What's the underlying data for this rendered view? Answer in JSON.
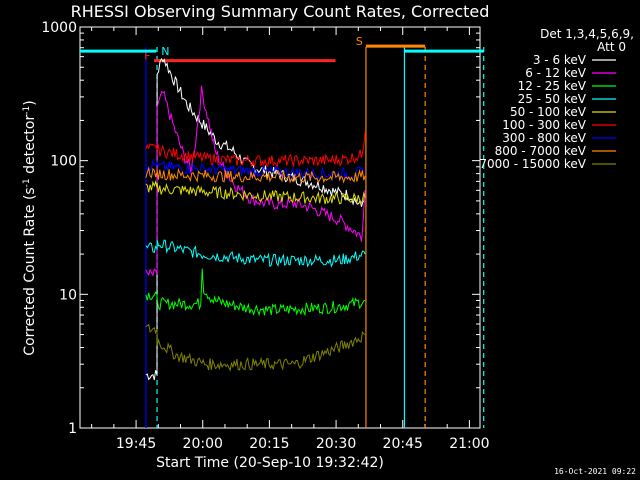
{
  "chart_data": {
    "type": "line",
    "title": "RHESSI Observing Summary Count Rates, Corrected",
    "xlabel": "Start Time (20-Sep-10 19:32:42)",
    "ylabel_main": "Corrected Count Rate (s",
    "ylabel_sup1": "-1",
    "ylabel_mid": " detector",
    "ylabel_sup2": "-1",
    "ylabel_end": ")",
    "ylim": [
      1,
      1000
    ],
    "yscale": "log",
    "y_ticks": [
      {
        "value": 1,
        "label": "1"
      },
      {
        "value": 10,
        "label": "10"
      },
      {
        "value": 100,
        "label": "100"
      },
      {
        "value": 1000,
        "label": "1000"
      }
    ],
    "xlim": [
      0,
      5400
    ],
    "x_ticks": [
      {
        "t": 757,
        "label": "19:45"
      },
      {
        "t": 1657,
        "label": "20:00"
      },
      {
        "t": 2557,
        "label": "20:15"
      },
      {
        "t": 3457,
        "label": "20:30"
      },
      {
        "t": 4357,
        "label": "20:45"
      },
      {
        "t": 5257,
        "label": "21:00"
      }
    ],
    "legend_header": [
      "Det 1,3,4,5,6,9,",
      "Att 0"
    ],
    "series": [
      {
        "name": "3 - 6 keV",
        "color": "#ffffff",
        "points": [
          [
            890,
            2.5
          ],
          [
            1040,
            2.5
          ],
          [
            1041,
            450
          ],
          [
            1120,
            600
          ],
          [
            1250,
            420
          ],
          [
            1450,
            260
          ],
          [
            1650,
            190
          ],
          [
            1850,
            140
          ],
          [
            2050,
            120
          ],
          [
            2250,
            95
          ],
          [
            2450,
            85
          ],
          [
            2650,
            80
          ],
          [
            2850,
            75
          ],
          [
            3050,
            70
          ],
          [
            3250,
            65
          ],
          [
            3450,
            58
          ],
          [
            3650,
            55
          ],
          [
            3800,
            45
          ],
          [
            3850,
            60
          ]
        ]
      },
      {
        "name": "6 - 12 keV",
        "color": "#ff00ff",
        "points": [
          [
            890,
            14
          ],
          [
            1040,
            14
          ],
          [
            1041,
            250
          ],
          [
            1120,
            320
          ],
          [
            1250,
            190
          ],
          [
            1400,
            110
          ],
          [
            1500,
            85
          ],
          [
            1560,
            140
          ],
          [
            1640,
            330
          ],
          [
            1720,
            220
          ],
          [
            1820,
            120
          ],
          [
            1950,
            85
          ],
          [
            2100,
            65
          ],
          [
            2300,
            52
          ],
          [
            2500,
            48
          ],
          [
            2700,
            47
          ],
          [
            2900,
            48
          ],
          [
            3100,
            45
          ],
          [
            3300,
            40
          ],
          [
            3500,
            36
          ],
          [
            3700,
            30
          ],
          [
            3800,
            27
          ],
          [
            3850,
            60
          ]
        ]
      },
      {
        "name": "12 - 25 keV",
        "color": "#00ff00",
        "points": [
          [
            890,
            10
          ],
          [
            1040,
            10
          ],
          [
            1041,
            8.5
          ],
          [
            1300,
            8.5
          ],
          [
            1500,
            8.5
          ],
          [
            1630,
            8.5
          ],
          [
            1650,
            17
          ],
          [
            1670,
            11
          ],
          [
            1800,
            9
          ],
          [
            2200,
            8
          ],
          [
            2600,
            7.6
          ],
          [
            3000,
            7.8
          ],
          [
            3400,
            8
          ],
          [
            3700,
            8.5
          ],
          [
            3850,
            9
          ]
        ]
      },
      {
        "name": "25 - 50 keV",
        "color": "#00ffff",
        "points": [
          [
            890,
            22
          ],
          [
            1040,
            22
          ],
          [
            1041,
            24
          ],
          [
            1300,
            22
          ],
          [
            1650,
            20
          ],
          [
            2000,
            19
          ],
          [
            2400,
            18
          ],
          [
            2800,
            18
          ],
          [
            3200,
            18
          ],
          [
            3500,
            18
          ],
          [
            3700,
            19
          ],
          [
            3850,
            20
          ]
        ]
      },
      {
        "name": "50 - 100 keV",
        "color": "#dddd00",
        "points": [
          [
            890,
            63
          ],
          [
            1040,
            63
          ],
          [
            1041,
            62
          ],
          [
            1400,
            60
          ],
          [
            1800,
            58
          ],
          [
            2200,
            56
          ],
          [
            2600,
            54
          ],
          [
            3000,
            53
          ],
          [
            3400,
            52
          ],
          [
            3700,
            52
          ],
          [
            3850,
            53
          ]
        ]
      },
      {
        "name": "100 - 300 keV",
        "color": "#ff0000",
        "points": [
          [
            890,
            122
          ],
          [
            1040,
            122
          ],
          [
            1041,
            120
          ],
          [
            1300,
            112
          ],
          [
            1700,
            104
          ],
          [
            2100,
            100
          ],
          [
            2500,
            100
          ],
          [
            2900,
            100
          ],
          [
            3300,
            100
          ],
          [
            3600,
            103
          ],
          [
            3800,
            110
          ],
          [
            3850,
            165
          ]
        ]
      },
      {
        "name": "300 - 800 keV",
        "color": "#0000ff",
        "points": [
          [
            890,
            93
          ],
          [
            1040,
            93
          ],
          [
            1041,
            90
          ],
          [
            1400,
            88
          ],
          [
            1800,
            86
          ],
          [
            2200,
            84
          ],
          [
            2600,
            82
          ],
          [
            3000,
            81
          ],
          [
            3400,
            80
          ],
          [
            3700,
            80
          ],
          [
            3850,
            82
          ]
        ]
      },
      {
        "name": "800 - 7000 keV",
        "color": "#ff8800",
        "points": [
          [
            890,
            82
          ],
          [
            1040,
            82
          ],
          [
            1041,
            80
          ],
          [
            1400,
            78
          ],
          [
            1800,
            77
          ],
          [
            2200,
            76
          ],
          [
            2600,
            76
          ],
          [
            3000,
            75
          ],
          [
            3400,
            75
          ],
          [
            3700,
            75
          ],
          [
            3850,
            77
          ]
        ]
      },
      {
        "name": "7000 - 15000 keV",
        "color": "#808000",
        "points": [
          [
            890,
            5.5
          ],
          [
            1040,
            5.5
          ],
          [
            1041,
            4.5
          ],
          [
            1300,
            3.5
          ],
          [
            1700,
            3
          ],
          [
            2100,
            3
          ],
          [
            2500,
            3
          ],
          [
            2900,
            3
          ],
          [
            3200,
            3.5
          ],
          [
            3500,
            4
          ],
          [
            3700,
            4.5
          ],
          [
            3850,
            5
          ]
        ]
      }
    ],
    "flags": [
      {
        "label": "F",
        "color": "#ff2222",
        "t0": 1000,
        "t1": 3450,
        "y": 560
      },
      {
        "label": "N",
        "color": "#00ffff",
        "t0": 0,
        "t1": 1030,
        "y": 660
      },
      {
        "label": "S",
        "color": "#ff8800",
        "t0": 3860,
        "t1": 4660,
        "y": 720
      }
    ],
    "verticals": [
      {
        "t": 890,
        "color": "#0000ff",
        "dash": false
      },
      {
        "t": 1040,
        "color": "#00ffff",
        "dash": true
      },
      {
        "t": 3860,
        "color": "#ff8800",
        "dash": false
      },
      {
        "t": 4380,
        "color": "#00ffff",
        "dash": false
      },
      {
        "t": 4660,
        "color": "#ff8800",
        "dash": true
      },
      {
        "t": 5450,
        "color": "#00ffff",
        "dash": true
      }
    ],
    "right_cyan": {
      "t0": 4380,
      "t1": 5450,
      "y": 660
    },
    "timestamp": "16-Oct-2021 09:22"
  }
}
